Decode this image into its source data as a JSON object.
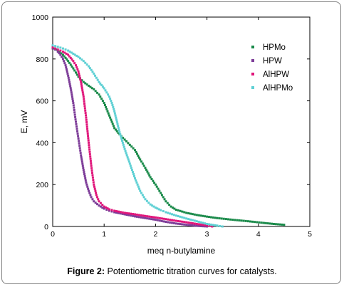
{
  "figure": {
    "caption_label": "Figure 2:",
    "caption_text": " Potentiometric titration curves for catalysts."
  },
  "chart_data": {
    "type": "scatter",
    "xlabel": "meq n-butylamine",
    "ylabel": "E, mV",
    "xlim": [
      0,
      5
    ],
    "ylim": [
      0,
      1000
    ],
    "xticks": [
      "0",
      "1",
      "2",
      "3",
      "4",
      "5"
    ],
    "yticks": [
      "0",
      "200",
      "400",
      "600",
      "800",
      "1000"
    ],
    "grid": false,
    "legend_position": "top-right",
    "series": [
      {
        "name": "HPMo",
        "color": "#1a8a4a",
        "x": [
          0,
          0.1,
          0.2,
          0.3,
          0.4,
          0.5,
          0.6,
          0.7,
          0.8,
          0.9,
          1.0,
          1.1,
          1.2,
          1.3,
          1.4,
          1.5,
          1.6,
          1.7,
          1.8,
          1.9,
          2.0,
          2.1,
          2.2,
          2.3,
          2.4,
          2.6,
          2.8,
          3.0,
          3.2,
          3.5,
          3.8,
          4.1,
          4.3,
          4.5
        ],
        "y": [
          855,
          840,
          820,
          790,
          755,
          715,
          690,
          672,
          655,
          630,
          590,
          530,
          470,
          440,
          415,
          390,
          365,
          320,
          280,
          235,
          200,
          160,
          120,
          95,
          80,
          65,
          55,
          47,
          40,
          32,
          25,
          17,
          12,
          8
        ]
      },
      {
        "name": "HPW",
        "color": "#7d3c98",
        "x": [
          0,
          0.05,
          0.1,
          0.15,
          0.2,
          0.25,
          0.3,
          0.35,
          0.4,
          0.45,
          0.5,
          0.55,
          0.6,
          0.65,
          0.7,
          0.75,
          0.8,
          0.9,
          1.0,
          1.1,
          1.2,
          1.4,
          1.6,
          1.8,
          2.0,
          2.2,
          2.4,
          2.6,
          2.8,
          3.0
        ],
        "y": [
          850,
          845,
          835,
          820,
          800,
          770,
          720,
          660,
          590,
          500,
          420,
          340,
          270,
          210,
          170,
          140,
          120,
          100,
          85,
          75,
          68,
          58,
          48,
          40,
          32,
          22,
          14,
          8,
          3,
          0
        ]
      },
      {
        "name": "AlHPW",
        "color": "#e0157a",
        "x": [
          0,
          0.1,
          0.2,
          0.3,
          0.4,
          0.45,
          0.5,
          0.55,
          0.6,
          0.65,
          0.7,
          0.75,
          0.8,
          0.85,
          0.9,
          1.0,
          1.1,
          1.2,
          1.4,
          1.6,
          1.8,
          2.0,
          2.2,
          2.4,
          2.6,
          2.8,
          3.0,
          3.1
        ],
        "y": [
          855,
          845,
          835,
          820,
          790,
          770,
          740,
          690,
          620,
          520,
          400,
          290,
          200,
          150,
          120,
          95,
          82,
          75,
          65,
          58,
          50,
          43,
          35,
          27,
          20,
          12,
          5,
          0
        ]
      },
      {
        "name": "AlHPMo",
        "color": "#5fd0d4",
        "x": [
          0,
          0.1,
          0.2,
          0.3,
          0.4,
          0.5,
          0.6,
          0.7,
          0.8,
          0.9,
          1.0,
          1.05,
          1.1,
          1.15,
          1.2,
          1.25,
          1.3,
          1.35,
          1.4,
          1.5,
          1.6,
          1.7,
          1.8,
          1.9,
          2.0,
          2.1,
          2.2,
          2.4,
          2.6,
          2.8,
          3.0,
          3.2,
          3.3
        ],
        "y": [
          865,
          858,
          850,
          840,
          825,
          810,
          790,
          765,
          730,
          690,
          660,
          640,
          620,
          590,
          550,
          500,
          450,
          410,
          370,
          300,
          230,
          170,
          130,
          105,
          90,
          78,
          68,
          52,
          38,
          25,
          12,
          4,
          0
        ]
      }
    ]
  }
}
